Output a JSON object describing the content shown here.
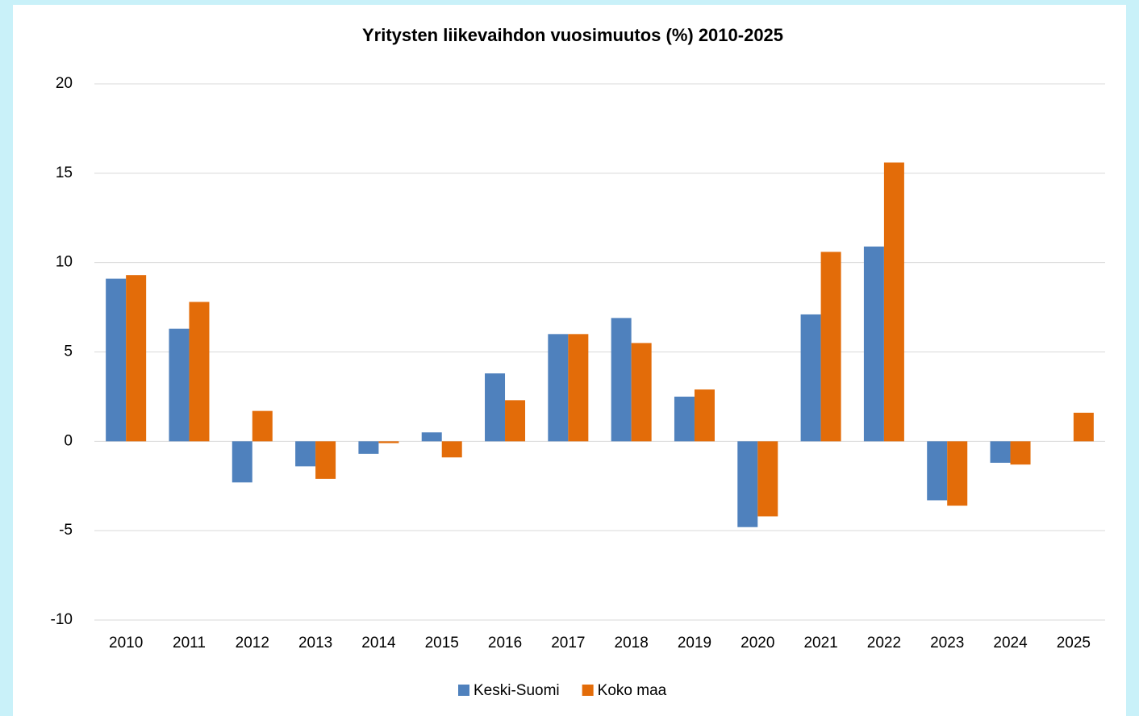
{
  "chart_data": {
    "type": "bar",
    "title": "Yritysten liikevaihdon vuosimuutos (%) 2010-2025",
    "categories": [
      "2010",
      "2011",
      "2012",
      "2013",
      "2014",
      "2015",
      "2016",
      "2017",
      "2018",
      "2019",
      "2020",
      "2021",
      "2022",
      "2023",
      "2024",
      "2025"
    ],
    "series": [
      {
        "name": "Keski-Suomi",
        "color": "#4f81bd",
        "values": [
          9.1,
          6.3,
          -2.3,
          -1.4,
          -0.7,
          0.5,
          3.8,
          6.0,
          6.9,
          2.5,
          -4.8,
          7.1,
          10.9,
          -3.3,
          -1.2,
          null
        ]
      },
      {
        "name": "Koko maa",
        "color": "#e36c09",
        "values": [
          9.3,
          7.8,
          1.7,
          -2.1,
          -0.1,
          -0.9,
          2.3,
          6.0,
          5.5,
          2.9,
          -4.2,
          10.6,
          15.6,
          -3.6,
          -1.3,
          1.6
        ]
      }
    ],
    "ylim": [
      -10,
      20
    ],
    "yticks": [
      -10,
      -5,
      0,
      5,
      10,
      15,
      20
    ],
    "grid": true,
    "legend": "bottom"
  }
}
